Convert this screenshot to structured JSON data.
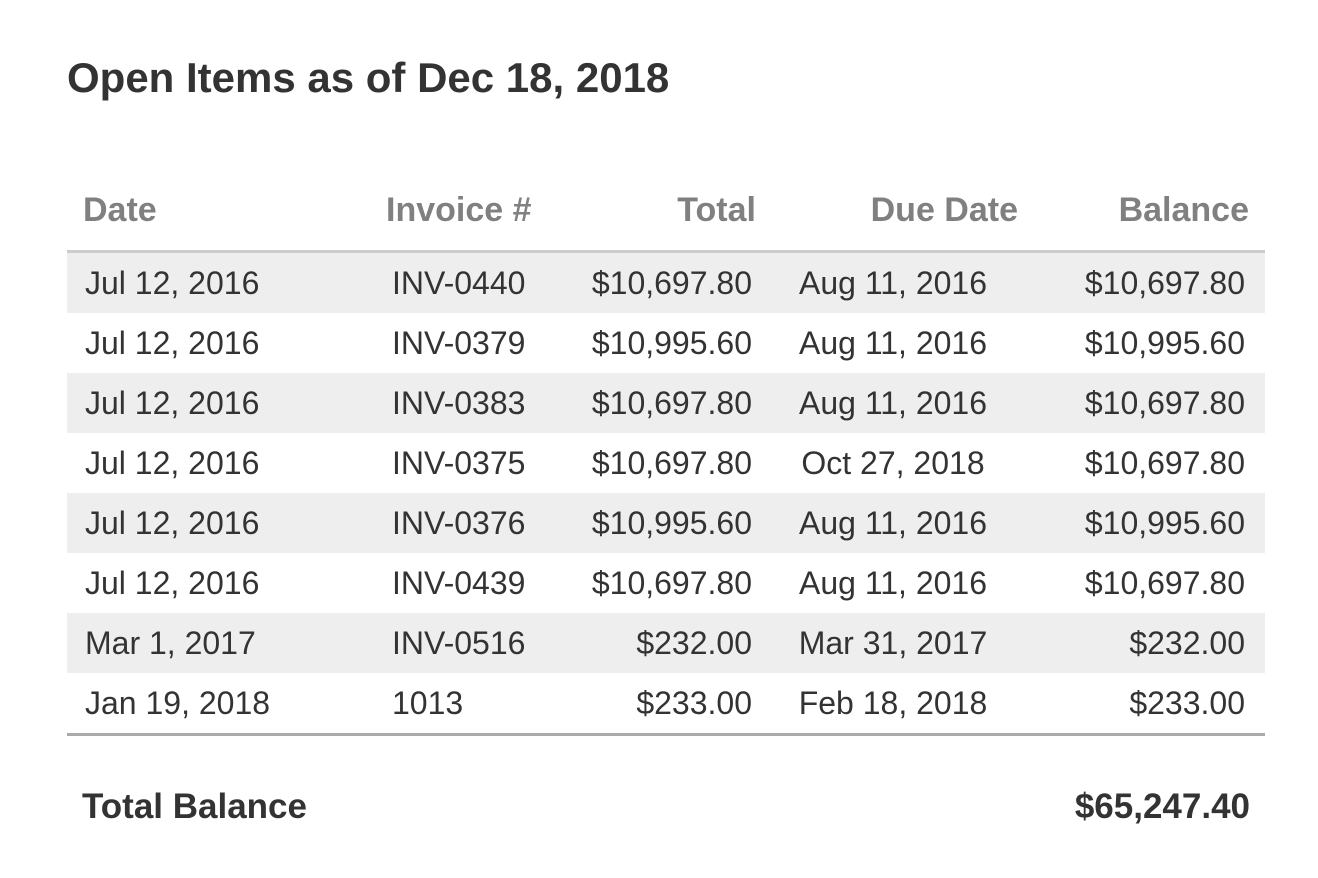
{
  "title": "Open Items as of Dec 18, 2018",
  "columns": {
    "date": "Date",
    "invoice": "Invoice #",
    "total": "Total",
    "due_date": "Due Date",
    "balance": "Balance"
  },
  "rows": [
    {
      "date": "Jul 12, 2016",
      "invoice": "INV-0440",
      "total": "$10,697.80",
      "due_date": "Aug 11, 2016",
      "balance": "$10,697.80"
    },
    {
      "date": "Jul 12, 2016",
      "invoice": "INV-0379",
      "total": "$10,995.60",
      "due_date": "Aug 11, 2016",
      "balance": "$10,995.60"
    },
    {
      "date": "Jul 12, 2016",
      "invoice": "INV-0383",
      "total": "$10,697.80",
      "due_date": "Aug 11, 2016",
      "balance": "$10,697.80"
    },
    {
      "date": "Jul 12, 2016",
      "invoice": "INV-0375",
      "total": "$10,697.80",
      "due_date": "Oct 27, 2018",
      "balance": "$10,697.80"
    },
    {
      "date": "Jul 12, 2016",
      "invoice": "INV-0376",
      "total": "$10,995.60",
      "due_date": "Aug 11, 2016",
      "balance": "$10,995.60"
    },
    {
      "date": "Jul 12, 2016",
      "invoice": "INV-0439",
      "total": "$10,697.80",
      "due_date": "Aug 11, 2016",
      "balance": "$10,697.80"
    },
    {
      "date": "Mar 1, 2017",
      "invoice": "INV-0516",
      "total": "$232.00",
      "due_date": "Mar 31, 2017",
      "balance": "$232.00"
    },
    {
      "date": "Jan 19, 2018",
      "invoice": "1013",
      "total": "$233.00",
      "due_date": "Feb 18, 2018",
      "balance": "$233.00"
    }
  ],
  "summary": {
    "label": "Total Balance",
    "value": "$65,247.40"
  },
  "colors": {
    "text": "#333333",
    "header_text": "#808080",
    "stripe": "#eeeeee"
  }
}
